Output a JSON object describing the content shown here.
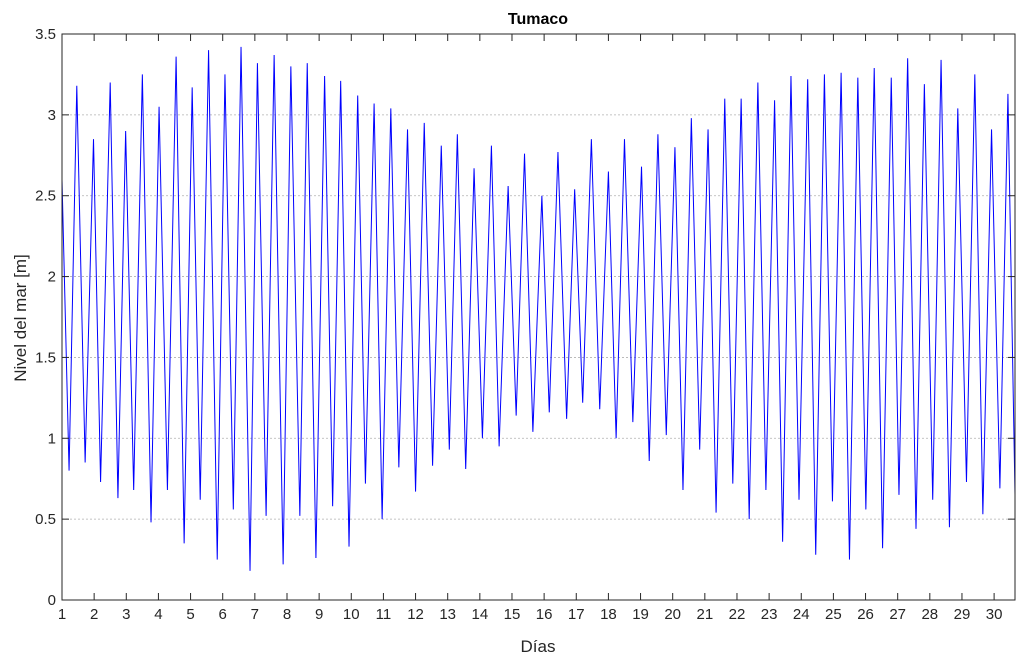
{
  "chart_data": {
    "type": "line",
    "title": "Tumaco",
    "xlabel": "Días",
    "ylabel": "Nivel del mar [m]",
    "xlim": [
      1,
      30.65
    ],
    "ylim": [
      0,
      3.5
    ],
    "x_ticks": [
      1,
      2,
      3,
      4,
      5,
      6,
      7,
      8,
      9,
      10,
      11,
      12,
      13,
      14,
      15,
      16,
      17,
      18,
      19,
      20,
      21,
      22,
      23,
      24,
      25,
      26,
      27,
      28,
      29,
      30
    ],
    "y_ticks": [
      0,
      0.5,
      1,
      1.5,
      2,
      2.5,
      3,
      3.5
    ],
    "grid": "y-dotted",
    "line_color": "#0000ff",
    "series": [
      {
        "x": [
          1.0,
          1.22,
          1.46,
          1.72,
          1.98,
          2.2,
          2.5,
          2.74,
          2.98,
          3.23,
          3.5,
          3.77,
          4.02,
          4.28,
          4.55,
          4.8,
          5.05,
          5.3,
          5.56,
          5.83,
          6.07,
          6.33,
          6.57,
          6.85,
          7.08,
          7.35,
          7.6,
          7.88,
          8.12,
          8.4,
          8.63,
          8.9,
          9.17,
          9.42,
          9.67,
          9.93,
          10.2,
          10.44,
          10.71,
          10.96,
          11.23,
          11.48,
          11.75,
          12.0,
          12.27,
          12.53,
          12.8,
          13.05,
          13.3,
          13.56,
          13.82,
          14.08,
          14.36,
          14.6,
          14.88,
          15.13,
          15.39,
          15.65,
          15.93,
          16.16,
          16.43,
          16.7,
          16.95,
          17.2,
          17.47,
          17.73,
          18.0,
          18.24,
          18.5,
          18.76,
          19.03,
          19.27,
          19.54,
          19.8,
          20.07,
          20.32,
          20.58,
          20.84,
          21.1,
          21.35,
          21.62,
          21.87,
          22.13,
          22.38,
          22.65,
          22.9,
          23.17,
          23.42,
          23.68,
          23.93,
          24.2,
          24.45,
          24.72,
          24.97,
          25.24,
          25.5,
          25.76,
          26.01,
          26.27,
          26.53,
          26.8,
          27.04,
          27.31,
          27.57,
          27.83,
          28.09,
          28.35,
          28.61,
          28.87,
          29.14,
          29.4,
          29.65,
          29.92,
          30.18,
          30.43,
          30.65
        ],
        "y": [
          2.6,
          0.8,
          3.18,
          0.85,
          2.85,
          0.73,
          3.2,
          0.63,
          2.9,
          0.68,
          3.25,
          0.48,
          3.05,
          0.68,
          3.36,
          0.35,
          3.17,
          0.62,
          3.4,
          0.25,
          3.25,
          0.56,
          3.42,
          0.18,
          3.32,
          0.52,
          3.37,
          0.22,
          3.3,
          0.52,
          3.32,
          0.26,
          3.24,
          0.58,
          3.21,
          0.33,
          3.12,
          0.72,
          3.07,
          0.5,
          3.04,
          0.82,
          2.91,
          0.67,
          2.95,
          0.83,
          2.81,
          0.93,
          2.88,
          0.81,
          2.67,
          1.0,
          2.81,
          0.95,
          2.56,
          1.14,
          2.76,
          1.04,
          2.5,
          1.16,
          2.77,
          1.12,
          2.54,
          1.22,
          2.85,
          1.18,
          2.65,
          1.0,
          2.85,
          1.1,
          2.68,
          0.86,
          2.88,
          1.02,
          2.8,
          0.68,
          2.98,
          0.93,
          2.91,
          0.54,
          3.1,
          0.72,
          3.1,
          0.5,
          3.2,
          0.68,
          3.09,
          0.36,
          3.24,
          0.62,
          3.22,
          0.28,
          3.25,
          0.61,
          3.26,
          0.25,
          3.23,
          0.56,
          3.29,
          0.32,
          3.23,
          0.65,
          3.35,
          0.44,
          3.19,
          0.62,
          3.34,
          0.45,
          3.04,
          0.73,
          3.25,
          0.53,
          2.91,
          0.69,
          3.13,
          0.65
        ]
      }
    ]
  }
}
